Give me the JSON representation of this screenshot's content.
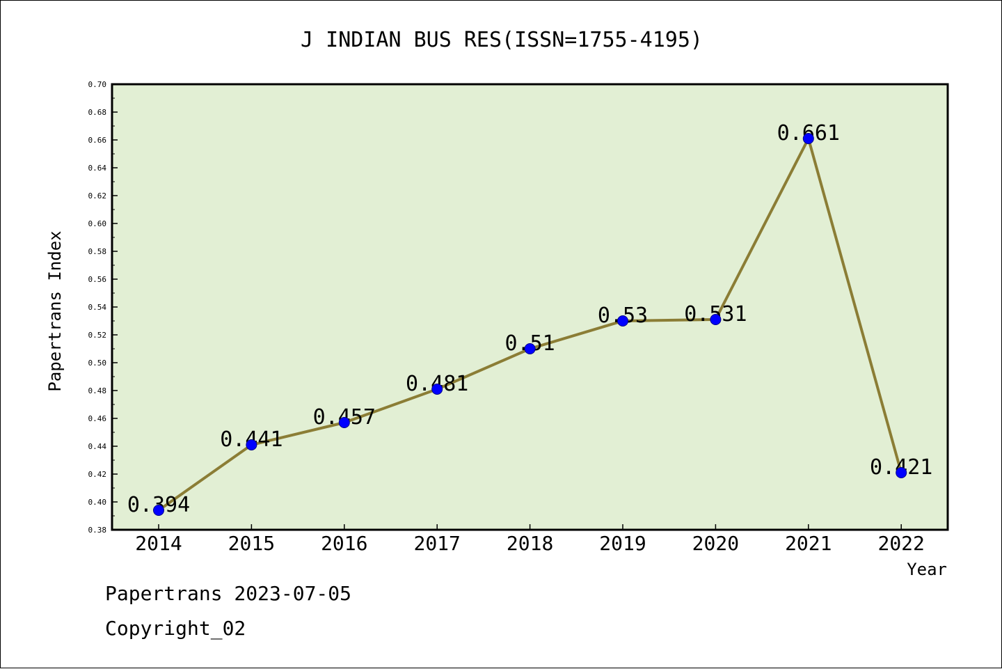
{
  "chart_data": {
    "type": "line",
    "title": "J INDIAN BUS RES(ISSN=1755-4195)",
    "xlabel": "Year",
    "ylabel": "Papertrans Index",
    "x": [
      "2014",
      "2015",
      "2016",
      "2017",
      "2018",
      "2019",
      "2020",
      "2021",
      "2022"
    ],
    "series": [
      {
        "values": [
          0.394,
          0.441,
          0.457,
          0.481,
          0.51,
          0.53,
          0.531,
          0.661,
          0.421
        ],
        "labels": [
          "0.394",
          "0.441",
          "0.457",
          "0.481",
          "0.51",
          "0.53",
          "0.531",
          "0.661",
          "0.421"
        ]
      }
    ],
    "ylim": [
      0.38,
      0.7
    ],
    "yticks": [
      "0.38",
      "0.40",
      "0.42",
      "0.44",
      "0.46",
      "0.48",
      "0.50",
      "0.52",
      "0.54",
      "0.56",
      "0.58",
      "0.60",
      "0.62",
      "0.64",
      "0.66",
      "0.68",
      "0.70"
    ],
    "grid": false,
    "colors": {
      "plot_background": "#e2efd4",
      "line": "#8b7d35",
      "marker": "#0000ff"
    }
  },
  "footer": {
    "line1": "Papertrans 2023-07-05",
    "line2": "Copyright_02"
  }
}
